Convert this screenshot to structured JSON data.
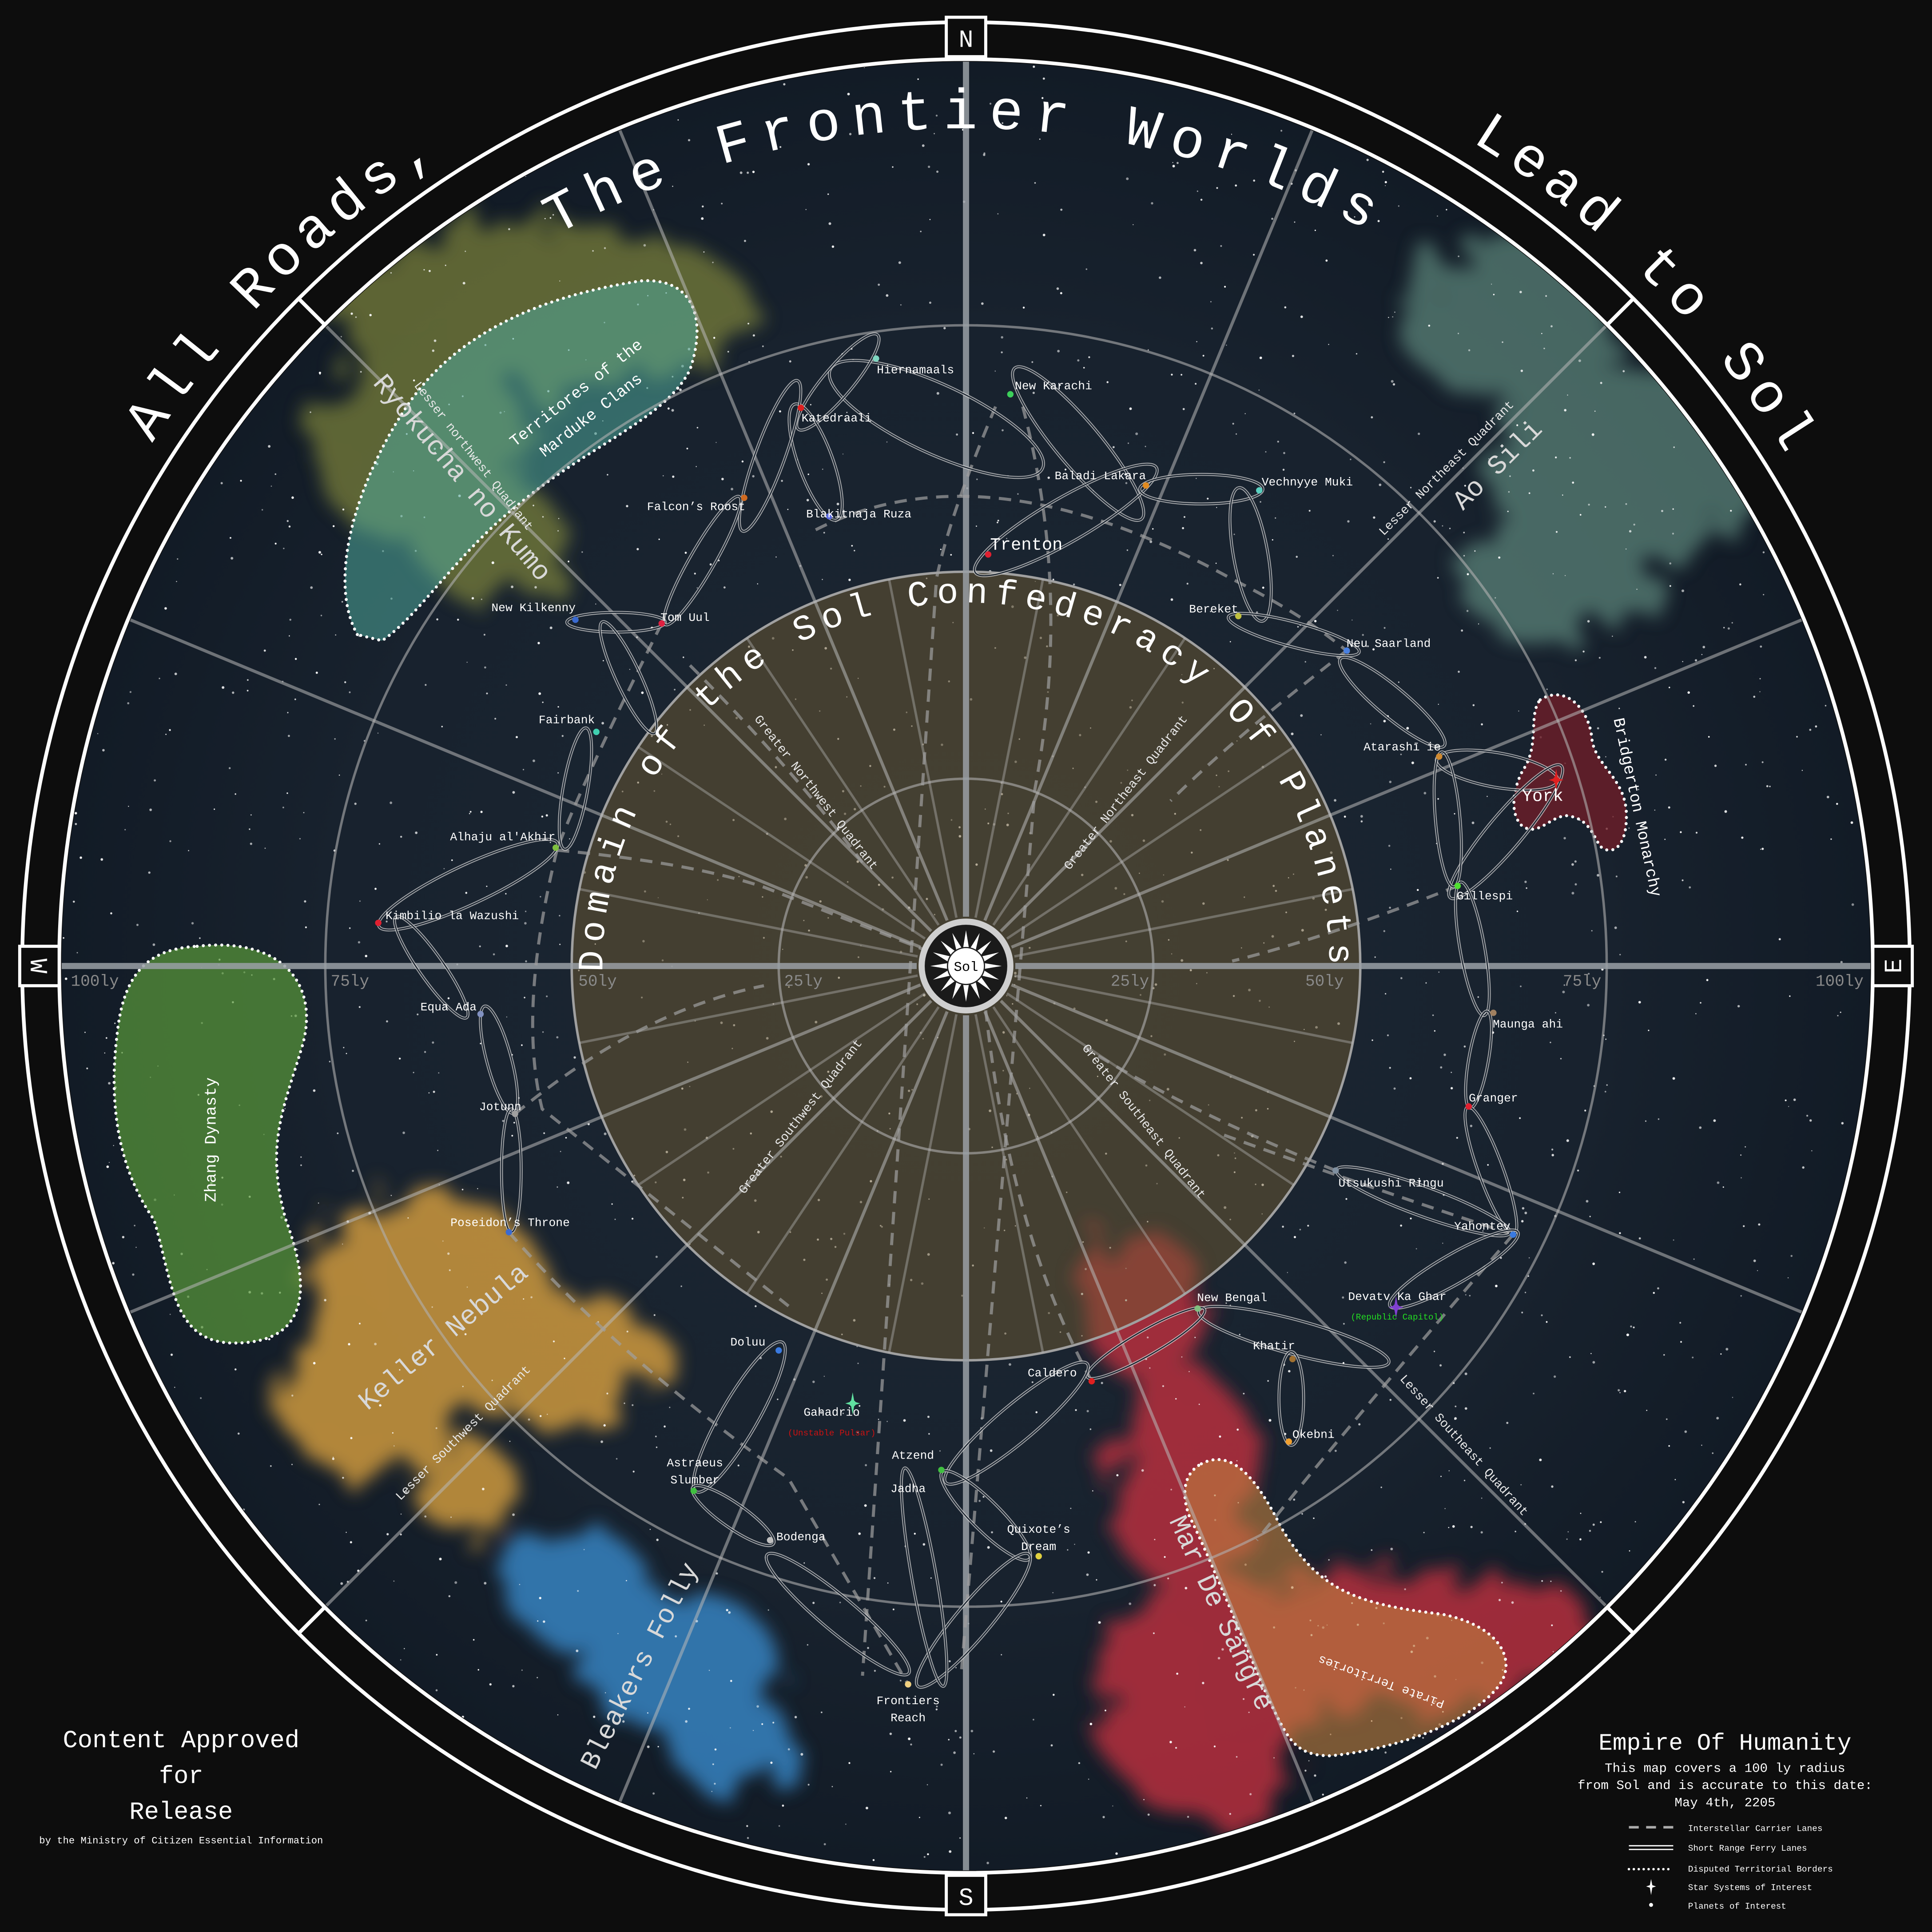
{
  "title": {
    "left": "All Roads,",
    "center": "The Frontier Worlds",
    "right": "Lead to Sol"
  },
  "compass": {
    "n": "N",
    "s": "S",
    "e": "E",
    "w": "W"
  },
  "center_label": "Sol",
  "domain_label": "Domain of the Sol Confederacy Of Planets",
  "distance_labels": [
    "100ly",
    "75ly",
    "50ly",
    "25ly",
    "25ly",
    "50ly",
    "75ly",
    "100ly"
  ],
  "quadrants": [
    "Greater Northwest Quadrant",
    "Greater Northeast Quadrant",
    "Greater Southwest Quadrant",
    "Greater Southeast Quadrant",
    "Lesser northwest Quadrant",
    "Lesser Northeast Quadrant",
    "Lesser Southwest Quadrant",
    "Lesser Southeast Quadrant"
  ],
  "regions": [
    {
      "name": "Ryokucha no Kumo"
    },
    {
      "lines": [
        "Territores of the",
        "Marduke Clans"
      ]
    },
    {
      "name": "Ao Sili"
    },
    {
      "name": "Bridgerton Monarchy"
    },
    {
      "name": "Zhang Dynasty"
    },
    {
      "name": "Keller Nebula"
    },
    {
      "name": "Bleakers Folly"
    },
    {
      "name": "Mar De Sangre"
    },
    {
      "name": "Pirate Territories"
    }
  ],
  "colors": {
    "background": "#0d0d0d",
    "space": "#16222f",
    "domain_fill": "#6e5a32",
    "marduke": "#4fa89a",
    "zhang": "#5a9a3a",
    "bridgerton": "#6e1e28",
    "pirate": "#c08040",
    "republic_note": "#22dd22",
    "pulsar_note": "#cc1111"
  },
  "planets": [
    {
      "name": "Hiernamaals",
      "type": "planet",
      "color": "#7fd6c0"
    },
    {
      "name": "Katedraali",
      "type": "planet",
      "color": "#e02020"
    },
    {
      "name": "New Karachi",
      "type": "planet",
      "color": "#3ccf5a"
    },
    {
      "name": "Falcon’s Roost",
      "type": "planet",
      "color": "#d06a20"
    },
    {
      "name": "Blakitnaja Ruza",
      "type": "planet",
      "color": "#5a6ae0"
    },
    {
      "name": "Baladi Lakara",
      "type": "planet",
      "color": "#e08a20"
    },
    {
      "name": "Trenton",
      "type": "planet",
      "color": "#e02030",
      "emphasis": true
    },
    {
      "name": "Vechnyye Muki",
      "type": "planet",
      "color": "#5ad0c0"
    },
    {
      "name": "Bereket",
      "type": "planet",
      "color": "#c0c040"
    },
    {
      "name": "Neu Saarland",
      "type": "planet",
      "color": "#4a80e0"
    },
    {
      "name": "New Kilkenny",
      "type": "planet",
      "color": "#3a6ad0"
    },
    {
      "name": "Tom Uul",
      "type": "planet",
      "color": "#e02040"
    },
    {
      "name": "Fairbank",
      "type": "planet",
      "color": "#40d0b0"
    },
    {
      "name": "Alhaju al'Akhir",
      "type": "planet",
      "color": "#80c040"
    },
    {
      "name": "Kimbilio la Wazushi",
      "type": "planet",
      "color": "#e02030"
    },
    {
      "name": "Equa Ada",
      "type": "planet",
      "color": "#8090c0"
    },
    {
      "name": "Jotunn",
      "type": "planet",
      "color": "#a0a0a0"
    },
    {
      "name": "Poseidon’s Throne",
      "type": "planet",
      "color": "#3a6ad0"
    },
    {
      "name": "Atarashī ie",
      "type": "planet",
      "color": "#d08a30"
    },
    {
      "name": "York",
      "type": "star",
      "color": "#e02020",
      "emphasis": true
    },
    {
      "name": "Gillespi",
      "type": "planet",
      "color": "#50e030"
    },
    {
      "name": "Maunga ahi",
      "type": "planet",
      "color": "#a08060"
    },
    {
      "name": "Granger",
      "type": "planet",
      "color": "#e02030"
    },
    {
      "name": "Utsukushi Ringu",
      "type": "planet",
      "color": "#8090a0"
    },
    {
      "name": "Yahontev",
      "type": "planet",
      "color": "#3a7ae0"
    },
    {
      "name": "Devatv Ka Ghar",
      "type": "star",
      "color": "#8040d0",
      "note": "(Republic Capitol)"
    },
    {
      "name": "New Bengal",
      "type": "planet",
      "color": "#80c080"
    },
    {
      "name": "Khatir",
      "type": "planet",
      "color": "#a07030"
    },
    {
      "name": "Okebni",
      "type": "planet",
      "color": "#f0a030"
    },
    {
      "name": "Caldero",
      "type": "planet",
      "color": "#e02020"
    },
    {
      "name": "Doluu",
      "type": "planet",
      "color": "#3a7ae0"
    },
    {
      "name": "Gahadrio",
      "type": "star",
      "color": "#60e0a0",
      "note": "(Unstable Pulsar)"
    },
    {
      "name": "Astraeus Slumber",
      "type": "planet",
      "color": "#40c040"
    },
    {
      "name": "Bodenga",
      "type": "planet",
      "color": "#c0c0c0"
    },
    {
      "name": "Atzend",
      "type": "planet",
      "color": "#40c040"
    },
    {
      "name": "Jadha",
      "type": "label"
    },
    {
      "name": "Quixote’s Dream",
      "type": "planet",
      "color": "#e0d040"
    },
    {
      "name": "Frontiers Reach",
      "type": "planet",
      "color": "#f0d080"
    }
  ],
  "approval": {
    "lines": [
      "Content Approved",
      "for",
      "Release"
    ],
    "byline": "by the Ministry of Citizen Essential Information"
  },
  "legend": {
    "title": "Empire Of Humanity",
    "description": [
      "This map covers a 100 ly radius",
      "from Sol and is accurate to this date:",
      "May 4th, 2205"
    ],
    "items": [
      {
        "label": "Interstellar Carrier Lanes",
        "symbol": "dashed-line"
      },
      {
        "label": "Short Range Ferry Lanes",
        "symbol": "double-line"
      },
      {
        "label": "Disputed Territorial Borders",
        "symbol": "dotted-line"
      },
      {
        "label": "Star Systems of Interest",
        "symbol": "star-icon"
      },
      {
        "label": "Planets of Interest",
        "symbol": "dot-icon"
      }
    ]
  }
}
